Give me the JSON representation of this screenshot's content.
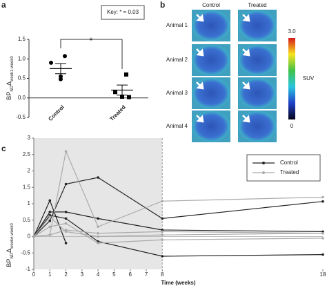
{
  "chart_data": [
    {
      "panel": "a",
      "type": "dot",
      "y_label": [
        "BP",
        "ND",
        "Δ",
        "week1-week0"
      ],
      "categories": [
        "Control",
        "Treated"
      ],
      "groups": [
        {
          "values": [
            1.07,
            0.9,
            0.55,
            0.48
          ],
          "mean": 0.75,
          "sem": 0.13
        },
        {
          "values": [
            0.6,
            0.15,
            0.03,
            0.02
          ],
          "mean": 0.2,
          "sem": 0.13
        }
      ],
      "ylim": [
        -0.5,
        1.5
      ],
      "yticks": [
        {
          "value": -0.5,
          "label": "-0.5"
        },
        {
          "value": 0,
          "label": "0.0"
        },
        0.5,
        {
          "value": 1,
          "label": "1.0"
        },
        1.5
      ],
      "annotations": [
        "Key: * = 0.03",
        "*"
      ],
      "color": "#000000"
    },
    {
      "panel": "c",
      "type": "line",
      "x_label": "Time (weeks)",
      "y_label": [
        "BP",
        "ND",
        "Δ",
        "week#-week0"
      ],
      "x": [
        0,
        1,
        2,
        4,
        8,
        18
      ],
      "xlim": [
        0,
        18
      ],
      "xticks": [
        0,
        1,
        2,
        3,
        4,
        5,
        6,
        7,
        8,
        18
      ],
      "ylim": [
        -1,
        3
      ],
      "yticks": [
        -1,
        -0.5,
        0,
        0.5,
        1,
        1.5,
        2,
        2.5,
        3
      ],
      "shaded_xrange": [
        0,
        8
      ],
      "legend": "top-right",
      "series": [
        {
          "name": "Control",
          "color": "#222222",
          "values": [
            0,
            0.48,
            1.6,
            1.8,
            0.55,
            1.07
          ]
        },
        {
          "name": "Control",
          "color": "#222222",
          "values": [
            0,
            1.1,
            -0.2,
            null,
            null,
            null
          ]
        },
        {
          "name": "Control",
          "color": "#222222",
          "values": [
            0,
            0.75,
            0.75,
            0.55,
            0.2,
            0.15
          ]
        },
        {
          "name": "Control",
          "color": "#222222",
          "values": [
            0,
            0.65,
            0.55,
            -0.15,
            -0.6,
            -0.55
          ]
        },
        {
          "name": "Treated",
          "color": "#aaaaaa",
          "values": [
            0,
            0.05,
            2.6,
            0.3,
            1.08,
            1.2
          ]
        },
        {
          "name": "Treated",
          "color": "#aaaaaa",
          "values": [
            0,
            0.6,
            0.15,
            0,
            0.05,
            0.1
          ]
        },
        {
          "name": "Treated",
          "color": "#aaaaaa",
          "values": [
            0,
            0.3,
            0.4,
            -0.2,
            -0.1,
            -0.05
          ]
        },
        {
          "name": "Treated",
          "color": "#aaaaaa",
          "values": [
            0,
            0.05,
            0.2,
            0.1,
            0.15,
            0.1
          ]
        }
      ]
    }
  ],
  "panel_b": {
    "panel": "b",
    "columns": [
      "Control",
      "Treated"
    ],
    "rows": [
      "Animal 1",
      "Animal 2",
      "Animal 3",
      "Animal 4"
    ],
    "colorbar_max": "3.0",
    "colorbar_min": "0",
    "colorbar_label": "SUV"
  }
}
